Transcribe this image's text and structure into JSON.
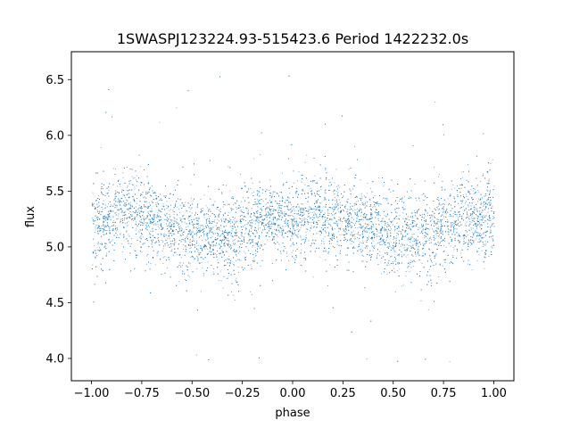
{
  "chart_data": {
    "type": "scatter",
    "title": "1SWASPJ123224.93-515423.6 Period 1422232.0s",
    "xlabel": "phase",
    "ylabel": "flux",
    "xlim": [
      -1.1,
      1.1
    ],
    "ylim": [
      3.8,
      6.75
    ],
    "x_ticks": [
      -1.0,
      -0.75,
      -0.5,
      -0.25,
      0.0,
      0.25,
      0.5,
      0.75,
      1.0
    ],
    "x_tick_labels": [
      "−1.00",
      "−0.75",
      "−0.50",
      "−0.25",
      "0.00",
      "0.25",
      "0.50",
      "0.75",
      "1.00"
    ],
    "y_ticks": [
      4.0,
      4.5,
      5.0,
      5.5,
      6.0,
      6.5
    ],
    "y_tick_labels": [
      "4.0",
      "4.5",
      "5.0",
      "5.5",
      "6.0",
      "6.5"
    ],
    "grid": false,
    "legend": "none",
    "point_color": "#1f77b4",
    "series": [
      {
        "x_range": [
          -1.0,
          1.0
        ],
        "y_mean": 5.28,
        "y_core_spread": [
          4.9,
          5.6
        ],
        "y_outlier_range": [
          3.95,
          6.6
        ],
        "columns": [
          {
            "x": -0.98,
            "y_low": 4.75,
            "y_high": 5.75
          },
          {
            "x": -0.92,
            "y_low": 4.85,
            "y_high": 5.6
          },
          {
            "x": -0.85,
            "y_low": 4.95,
            "y_high": 5.7
          },
          {
            "x": -0.8,
            "y_low": 4.9,
            "y_high": 5.75
          },
          {
            "x": -0.7,
            "y_low": 4.85,
            "y_high": 5.65
          },
          {
            "x": -0.6,
            "y_low": 4.8,
            "y_high": 5.55
          },
          {
            "x": -0.55,
            "y_low": 4.7,
            "y_high": 5.5
          },
          {
            "x": -0.45,
            "y_low": 4.75,
            "y_high": 5.45
          },
          {
            "x": -0.35,
            "y_low": 4.7,
            "y_high": 5.5
          },
          {
            "x": -0.28,
            "y_low": 4.6,
            "y_high": 5.55
          },
          {
            "x": -0.2,
            "y_low": 4.8,
            "y_high": 5.6
          },
          {
            "x": -0.1,
            "y_low": 4.95,
            "y_high": 5.55
          },
          {
            "x": 0.0,
            "y_low": 4.85,
            "y_high": 5.6
          },
          {
            "x": 0.1,
            "y_low": 4.9,
            "y_high": 5.7
          },
          {
            "x": 0.2,
            "y_low": 4.85,
            "y_high": 5.65
          },
          {
            "x": 0.3,
            "y_low": 4.9,
            "y_high": 5.6
          },
          {
            "x": 0.4,
            "y_low": 4.8,
            "y_high": 5.55
          },
          {
            "x": 0.5,
            "y_low": 4.75,
            "y_high": 5.5
          },
          {
            "x": 0.6,
            "y_low": 4.7,
            "y_high": 5.5
          },
          {
            "x": 0.7,
            "y_low": 4.65,
            "y_high": 5.6
          },
          {
            "x": 0.8,
            "y_low": 4.9,
            "y_high": 5.65
          },
          {
            "x": 0.9,
            "y_low": 4.85,
            "y_high": 5.6
          },
          {
            "x": 0.98,
            "y_low": 4.8,
            "y_high": 5.75
          }
        ]
      }
    ]
  }
}
